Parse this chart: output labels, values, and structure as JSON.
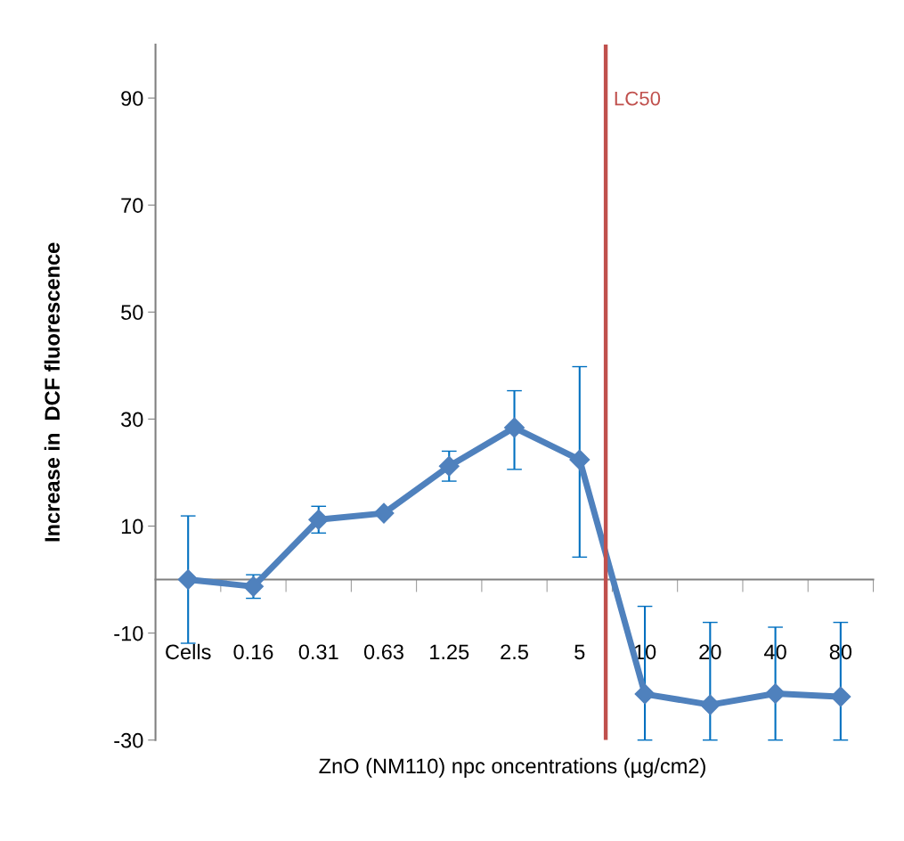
{
  "chart_data": {
    "type": "line",
    "xlabel": "ZnO (NM110) npc oncentrations (µg/cm2)",
    "ylabel": "Increase in  DCF fluorescence",
    "categories": [
      "Cells",
      "0.16",
      "0.31",
      "0.63",
      "1.25",
      "2.5",
      "5",
      "10",
      "20",
      "40",
      "80"
    ],
    "series": [
      {
        "color": "#4f81bd",
        "values": [
          0,
          -1.3,
          11.2,
          12.4,
          21.2,
          28.4,
          22.4,
          -21.4,
          -23.4,
          -21.3,
          -21.9
        ],
        "errors": [
          [
            -11.9,
            11.9
          ],
          [
            -3.5,
            0.9
          ],
          [
            8.7,
            13.7
          ],
          null,
          [
            18.4,
            24.0
          ],
          [
            20.6,
            35.3
          ],
          [
            4.2,
            39.8
          ],
          [
            -30,
            -5.0
          ],
          [
            -30,
            -8
          ],
          [
            -30,
            -8.9
          ],
          [
            -30,
            -8
          ]
        ]
      }
    ],
    "ylim": [
      -30,
      100
    ],
    "yticks": [
      -30,
      -10,
      10,
      30,
      50,
      70,
      90
    ],
    "annotations": [
      "LC50"
    ],
    "grid": false,
    "legend": false,
    "marker": "diamond",
    "line_style": "solid"
  }
}
